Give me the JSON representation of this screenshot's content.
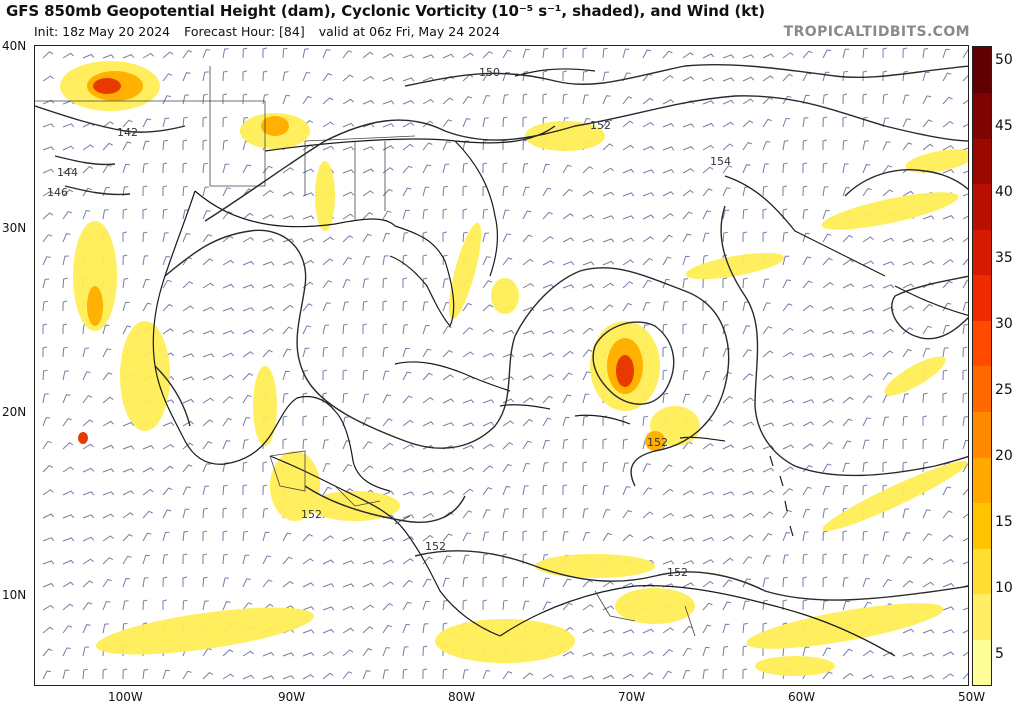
{
  "header": {
    "title": "GFS 850mb Geopotential Height (dam), Cyclonic Vorticity (10⁻⁵ s⁻¹, shaded), and Wind (kt)",
    "init": "Init: 18z May 20 2024",
    "forecast_hour": "Forecast Hour: [84]",
    "valid": "valid at 06z Fri, May 24 2024",
    "credit": "TROPICALTIDBITS.COM"
  },
  "axes": {
    "lat_labels": [
      "40N",
      "30N",
      "20N",
      "10N"
    ],
    "lon_labels": [
      "100W",
      "90W",
      "80W",
      "70W",
      "60W",
      "50W"
    ]
  },
  "colorbar": {
    "ticks": [
      "50",
      "45",
      "40",
      "35",
      "30",
      "25",
      "20",
      "15",
      "10",
      "5"
    ],
    "colors": [
      "#ffff99",
      "#ffee66",
      "#ffdd33",
      "#ffc400",
      "#ffa800",
      "#ff8a00",
      "#ff6a00",
      "#ff4a00",
      "#ee2a00",
      "#d41a00",
      "#b80f00",
      "#9a0800",
      "#7d0400",
      "#600000"
    ]
  },
  "height_contour_labels": [
    "150",
    "152",
    "154",
    "142",
    "144",
    "146",
    "152",
    "152",
    "152",
    "152"
  ]
}
